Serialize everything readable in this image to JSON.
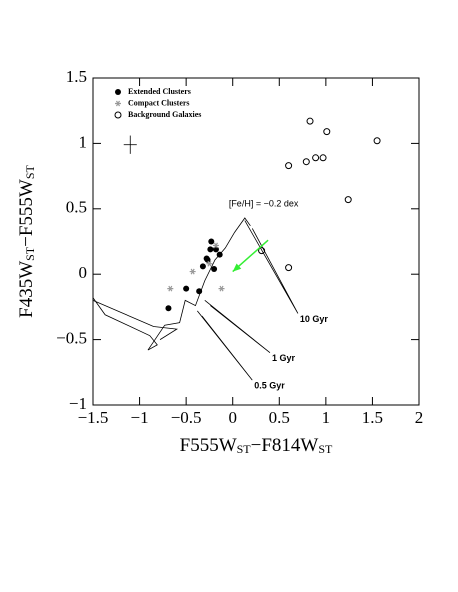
{
  "chart_data": {
    "type": "scatter",
    "xlabel": [
      "F555W",
      "ST",
      "−F814W",
      "ST"
    ],
    "ylabel": [
      "F435W",
      "ST",
      "−F555W",
      "ST"
    ],
    "xlim": [
      -1.5,
      2
    ],
    "ylim": [
      -1,
      1.5
    ],
    "xticks": [
      {
        "value": -1.5,
        "label": "−1.5"
      },
      {
        "value": -1,
        "label": "−1"
      },
      {
        "value": -0.5,
        "label": "−0.5"
      },
      0,
      0.5,
      1,
      1.5,
      2
    ],
    "yticks": [
      {
        "value": -1,
        "label": "−1"
      },
      {
        "value": -0.5,
        "label": "−0.5"
      },
      0,
      0.5,
      1,
      1.5
    ],
    "annotation": "[Fe/H] = −0.2 dex",
    "series": [
      {
        "name": "Extended Clusters",
        "marker": "filled",
        "color": "#000000",
        "x": [
          -0.69,
          -0.5,
          -0.36,
          -0.32,
          -0.28,
          -0.23,
          -0.24,
          -0.2,
          -0.14,
          -0.27,
          -0.18
        ],
        "values": [
          -0.26,
          -0.11,
          -0.13,
          0.06,
          0.12,
          0.25,
          0.19,
          0.04,
          0.15,
          0.11,
          0.19
        ]
      },
      {
        "name": "Compact Clusters",
        "marker": "asterisk",
        "color": "#999999",
        "x": [
          -0.67,
          -0.43,
          -0.12,
          -0.18,
          -0.25
        ],
        "values": [
          -0.11,
          0.02,
          -0.11,
          0.22,
          0.08
        ]
      },
      {
        "name": "Background Galaxies",
        "marker": "open",
        "color": "#000000",
        "x": [
          0.83,
          1.01,
          1.55,
          0.79,
          0.89,
          0.97,
          0.6,
          1.24,
          0.6,
          0.31
        ],
        "values": [
          1.17,
          1.09,
          1.02,
          0.86,
          0.89,
          0.89,
          0.83,
          0.57,
          0.05,
          0.18
        ]
      },
      {
        "marker": "line",
        "color": "#000000",
        "x": [
          -1.5,
          -1.37,
          -0.89,
          -0.81,
          -0.91,
          -0.73,
          -0.57,
          -0.51,
          -0.4,
          -0.3,
          -0.19,
          -0.08,
          0.02,
          0.13,
          0.19,
          null,
          -1.5,
          -0.85,
          -0.6,
          -0.78
        ],
        "values": [
          -0.18,
          -0.31,
          -0.47,
          -0.54,
          -0.58,
          -0.39,
          -0.37,
          -0.2,
          -0.24,
          -0.05,
          0.11,
          0.2,
          0.32,
          0.43,
          0.37,
          null,
          -0.2,
          -0.4,
          -0.42,
          -0.5
        ]
      },
      {
        "name": "10 Gyr",
        "marker": "line",
        "color": "#000000",
        "x": [
          0.13,
          0.7,
          0.21
        ],
        "values": [
          0.41,
          -0.3,
          0.35
        ]
      },
      {
        "name": "1 Gyr",
        "marker": "line",
        "color": "#000000",
        "x": [
          -0.3,
          0.4,
          -0.24
        ],
        "values": [
          -0.2,
          -0.6,
          -0.24
        ]
      },
      {
        "name": "0.5 Gyr",
        "marker": "line",
        "color": "#000000",
        "x": [
          -0.38,
          0.21,
          -0.33
        ],
        "values": [
          -0.28,
          -0.81,
          -0.32
        ]
      }
    ],
    "reddening_vector": {
      "color": "#33ee33",
      "x": [
        0.38,
        0.0
      ],
      "values": [
        0.26,
        0.02
      ]
    },
    "error_bar": {
      "x": -1.1,
      "value": 0.99,
      "xerr": 0.07,
      "yerr": 0.07
    }
  }
}
